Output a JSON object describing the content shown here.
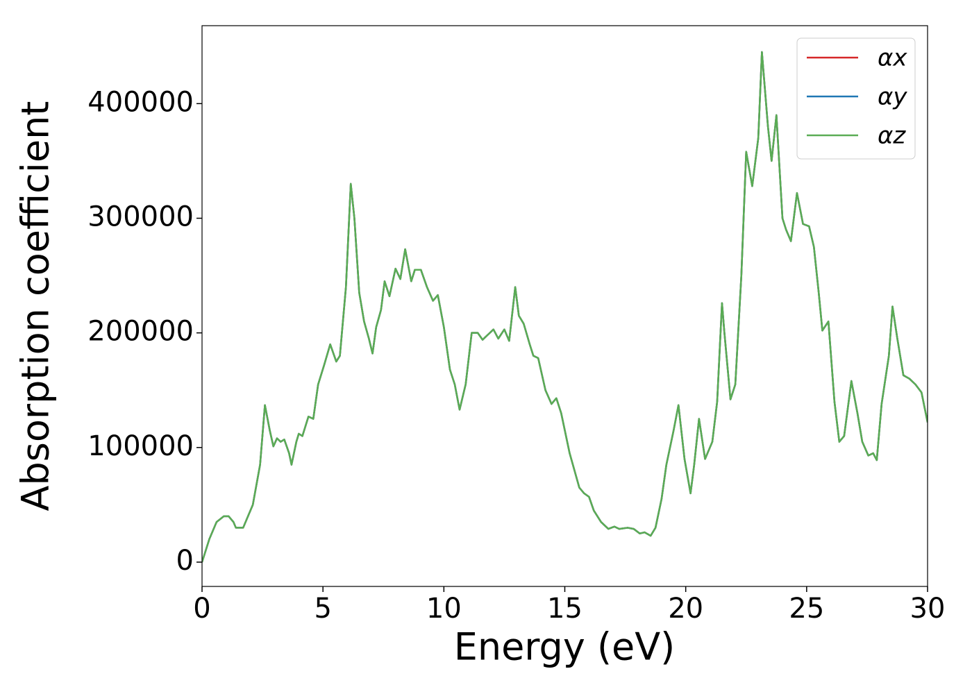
{
  "chart_data": {
    "type": "line",
    "xlabel": "Energy (eV)",
    "ylabel": "Absorption coefficient",
    "xlim": [
      0,
      30
    ],
    "xticks": [
      0,
      5,
      10,
      15,
      20,
      25,
      30
    ],
    "ylim": [
      -21200,
      468000
    ],
    "yticks": [
      0,
      100000,
      200000,
      300000,
      400000
    ],
    "grid": false,
    "legend": "upper right",
    "x": [
      0,
      0.3,
      0.6,
      0.9,
      1.1,
      1.3,
      1.4,
      1.7,
      1.9,
      2.1,
      2.4,
      2.6,
      2.8,
      2.95,
      3.1,
      3.25,
      3.4,
      3.6,
      3.7,
      3.9,
      4.0,
      4.15,
      4.4,
      4.6,
      4.8,
      5.05,
      5.3,
      5.55,
      5.7,
      5.95,
      6.15,
      6.3,
      6.5,
      6.7,
      6.9,
      7.05,
      7.2,
      7.4,
      7.55,
      7.75,
      8.0,
      8.2,
      8.4,
      8.65,
      8.8,
      9.05,
      9.3,
      9.55,
      9.75,
      10.0,
      10.25,
      10.45,
      10.65,
      10.9,
      11.15,
      11.4,
      11.6,
      11.9,
      12.05,
      12.25,
      12.5,
      12.7,
      12.95,
      13.1,
      13.3,
      13.55,
      13.7,
      13.9,
      14.2,
      14.45,
      14.65,
      14.85,
      15.2,
      15.6,
      15.8,
      16.0,
      16.2,
      16.5,
      16.8,
      17.05,
      17.25,
      17.6,
      17.85,
      18.1,
      18.3,
      18.55,
      18.75,
      19.0,
      19.2,
      19.5,
      19.7,
      19.95,
      20.2,
      20.35,
      20.55,
      20.8,
      21.1,
      21.3,
      21.5,
      21.6,
      21.85,
      22.05,
      22.3,
      22.5,
      22.75,
      23.0,
      23.15,
      23.4,
      23.55,
      23.75,
      24.0,
      24.15,
      24.35,
      24.6,
      24.85,
      25.1,
      25.3,
      25.5,
      25.65,
      25.9,
      26.15,
      26.35,
      26.55,
      26.85,
      27.1,
      27.3,
      27.55,
      27.75,
      27.9,
      28.1,
      28.4,
      28.55,
      28.75,
      29.0,
      29.25,
      29.5,
      29.75,
      30.0
    ],
    "series": [
      {
        "name": "αx",
        "color": "#d62728",
        "values": [
          0,
          20000,
          35000,
          40000,
          40000,
          35000,
          30000,
          30000,
          40000,
          50000,
          85000,
          137000,
          115000,
          101000,
          108000,
          105000,
          107000,
          95000,
          85000,
          105000,
          112000,
          110000,
          127000,
          125000,
          155000,
          172000,
          190000,
          175000,
          180000,
          240000,
          330000,
          300000,
          235000,
          210000,
          195000,
          182000,
          205000,
          220000,
          245000,
          232000,
          256000,
          247000,
          273000,
          245000,
          255000,
          255000,
          240000,
          228000,
          233000,
          205000,
          168000,
          155000,
          133000,
          155000,
          200000,
          200000,
          194000,
          200000,
          203000,
          195000,
          203000,
          193000,
          240000,
          215000,
          208000,
          190000,
          180000,
          178000,
          150000,
          138000,
          143000,
          130000,
          95000,
          65000,
          60000,
          57000,
          45000,
          35000,
          29000,
          31000,
          29000,
          30000,
          29000,
          25000,
          26000,
          23000,
          30000,
          55000,
          85000,
          115000,
          137000,
          90000,
          60000,
          85000,
          125000,
          90000,
          105000,
          140000,
          226000,
          200000,
          142000,
          155000,
          250000,
          358000,
          328000,
          370000,
          445000,
          380000,
          350000,
          390000,
          300000,
          290000,
          280000,
          322000,
          295000,
          293000,
          275000,
          235000,
          202000,
          210000,
          140000,
          105000,
          110000,
          158000,
          130000,
          105000,
          93000,
          95000,
          89000,
          138000,
          180000,
          223000,
          195000,
          163000,
          160000,
          155000,
          148000,
          122000
        ]
      },
      {
        "name": "αy",
        "color": "#1f77b4",
        "values": [
          0,
          20000,
          35000,
          40000,
          40000,
          35000,
          30000,
          30000,
          40000,
          50000,
          85000,
          137000,
          115000,
          101000,
          108000,
          105000,
          107000,
          95000,
          85000,
          105000,
          112000,
          110000,
          127000,
          125000,
          155000,
          172000,
          190000,
          175000,
          180000,
          240000,
          330000,
          300000,
          235000,
          210000,
          195000,
          182000,
          205000,
          220000,
          245000,
          232000,
          256000,
          247000,
          273000,
          245000,
          255000,
          255000,
          240000,
          228000,
          233000,
          205000,
          168000,
          155000,
          133000,
          155000,
          200000,
          200000,
          194000,
          200000,
          203000,
          195000,
          203000,
          193000,
          240000,
          215000,
          208000,
          190000,
          180000,
          178000,
          150000,
          138000,
          143000,
          130000,
          95000,
          65000,
          60000,
          57000,
          45000,
          35000,
          29000,
          31000,
          29000,
          30000,
          29000,
          25000,
          26000,
          23000,
          30000,
          55000,
          85000,
          115000,
          137000,
          90000,
          60000,
          85000,
          125000,
          90000,
          105000,
          140000,
          226000,
          200000,
          142000,
          155000,
          250000,
          358000,
          328000,
          370000,
          445000,
          380000,
          350000,
          390000,
          300000,
          290000,
          280000,
          322000,
          295000,
          293000,
          275000,
          235000,
          202000,
          210000,
          140000,
          105000,
          110000,
          158000,
          130000,
          105000,
          93000,
          95000,
          89000,
          138000,
          180000,
          223000,
          195000,
          163000,
          160000,
          155000,
          148000,
          122000
        ]
      },
      {
        "name": "αz",
        "color": "#5aac54",
        "values": [
          0,
          20000,
          35000,
          40000,
          40000,
          35000,
          30000,
          30000,
          40000,
          50000,
          85000,
          137000,
          115000,
          101000,
          108000,
          105000,
          107000,
          95000,
          85000,
          105000,
          112000,
          110000,
          127000,
          125000,
          155000,
          172000,
          190000,
          175000,
          180000,
          240000,
          330000,
          300000,
          235000,
          210000,
          195000,
          182000,
          205000,
          220000,
          245000,
          232000,
          256000,
          247000,
          273000,
          245000,
          255000,
          255000,
          240000,
          228000,
          233000,
          205000,
          168000,
          155000,
          133000,
          155000,
          200000,
          200000,
          194000,
          200000,
          203000,
          195000,
          203000,
          193000,
          240000,
          215000,
          208000,
          190000,
          180000,
          178000,
          150000,
          138000,
          143000,
          130000,
          95000,
          65000,
          60000,
          57000,
          45000,
          35000,
          29000,
          31000,
          29000,
          30000,
          29000,
          25000,
          26000,
          23000,
          30000,
          55000,
          85000,
          115000,
          137000,
          90000,
          60000,
          85000,
          125000,
          90000,
          105000,
          140000,
          226000,
          200000,
          142000,
          155000,
          250000,
          358000,
          328000,
          370000,
          445000,
          380000,
          350000,
          390000,
          300000,
          290000,
          280000,
          322000,
          295000,
          293000,
          275000,
          235000,
          202000,
          210000,
          140000,
          105000,
          110000,
          158000,
          130000,
          105000,
          93000,
          95000,
          89000,
          138000,
          180000,
          223000,
          195000,
          163000,
          160000,
          155000,
          148000,
          122000
        ]
      }
    ]
  }
}
